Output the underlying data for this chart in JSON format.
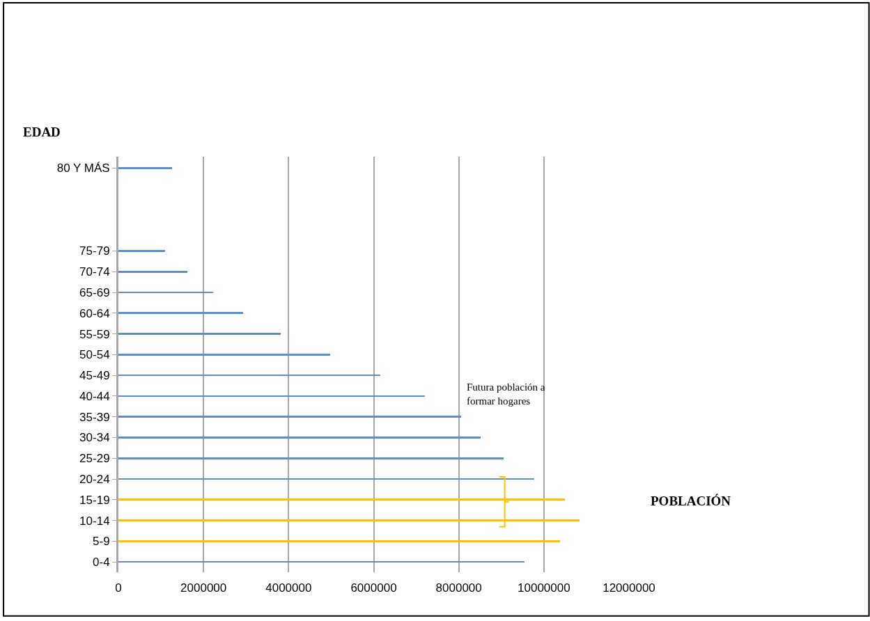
{
  "chart_data": {
    "type": "bar",
    "orientation": "horizontal",
    "xlabel": "POBLACIÓN",
    "ylabel": "EDAD",
    "categories": [
      "80 Y MÁS",
      null,
      null,
      null,
      "75-79",
      "70-74",
      "65-69",
      "60-64",
      "55-59",
      "50-54",
      "45-49",
      "40-44",
      "35-39",
      "30-34",
      "25-29",
      "20-24",
      "15-19",
      "10-14",
      "5-9",
      "0-4"
    ],
    "values": [
      1260000,
      null,
      null,
      null,
      1100000,
      1620000,
      2230000,
      2930000,
      3820000,
      4970000,
      6160000,
      7200000,
      8050000,
      8520000,
      9050000,
      9770000,
      10490000,
      10840000,
      10380000,
      9540000
    ],
    "colors": [
      "#5b8fcc",
      "#5b8fcc",
      "#5b8fcc",
      "#5b8fcc",
      "#5b8fcc",
      "#5b8fcc",
      "#5b8fcc",
      "#5b8fcc",
      "#5b8fcc",
      "#5b8fcc",
      "#5b8fcc",
      "#5b8fcc",
      "#5b8fcc",
      "#5b8fcc",
      "#5b8fcc",
      "#5b8fcc",
      "#ffc000",
      "#ffc000",
      "#ffc000",
      "#5b8fcc"
    ],
    "xlim": [
      0,
      12000000
    ],
    "xticks": [
      0,
      2000000,
      4000000,
      6000000,
      8000000,
      10000000,
      12000000
    ],
    "grid": "x",
    "annotations": [
      "Futura población a formar hogares"
    ]
  }
}
